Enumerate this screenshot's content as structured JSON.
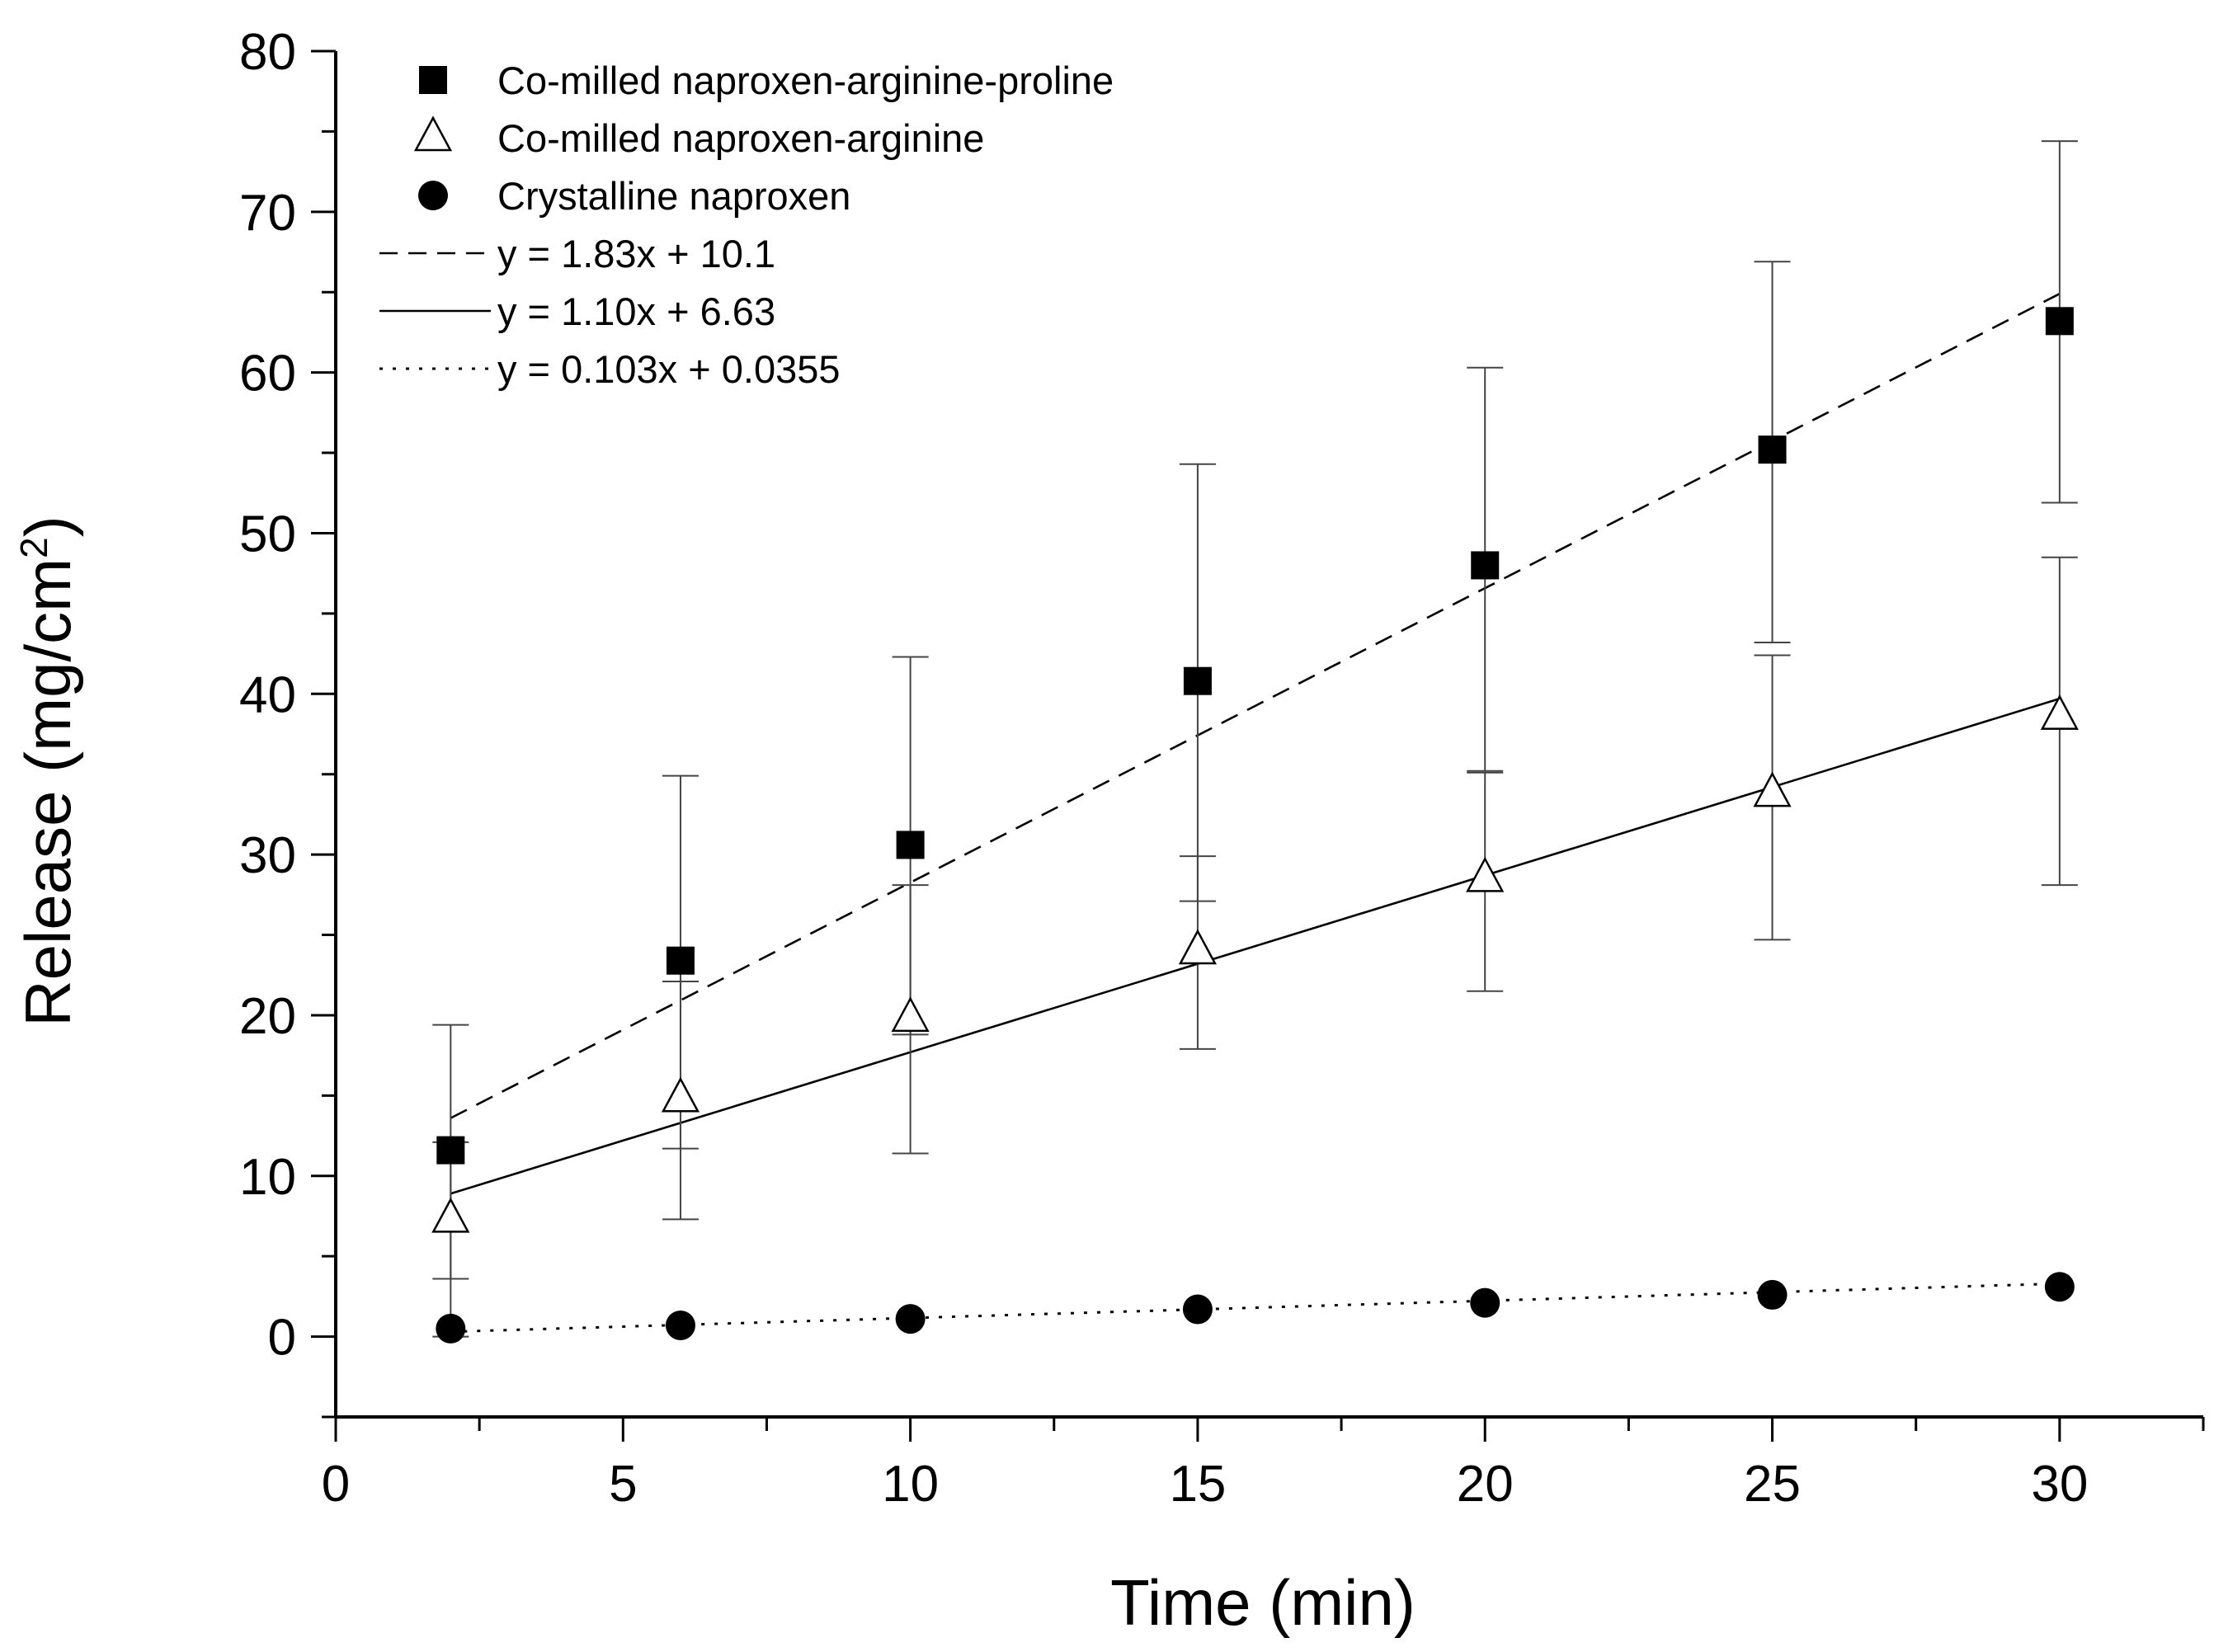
{
  "chart_data": {
    "type": "scatter",
    "title": "",
    "xlabel": "Time (min)",
    "ylabel": "Release (mg/cm",
    "ylabel_sup": "2",
    "ylabel_close": ")",
    "xlim": [
      0,
      32.5
    ],
    "ylim": [
      -5,
      80
    ],
    "xticks": [
      0,
      5,
      10,
      15,
      20,
      25,
      30
    ],
    "yticks": [
      0,
      10,
      20,
      30,
      40,
      50,
      60,
      70,
      80
    ],
    "grid": false,
    "legend_position": "top-left",
    "series": [
      {
        "name": "Co-milled naproxen-arginine-proline",
        "marker": "filled-square",
        "x": [
          2,
          6,
          10,
          15,
          20,
          25,
          30
        ],
        "y": [
          11.6,
          23.4,
          30.6,
          40.8,
          48.0,
          55.2,
          63.2
        ],
        "err_low": [
          3.6,
          11.7,
          18.8,
          27.1,
          35.2,
          43.2,
          51.9
        ],
        "err_high": [
          19.4,
          34.9,
          42.3,
          54.3,
          60.3,
          66.9,
          74.4
        ]
      },
      {
        "name": "Co-milled naproxen-arginine",
        "marker": "open-triangle",
        "x": [
          2,
          6,
          10,
          15,
          20,
          25,
          30
        ],
        "y": [
          7.3,
          14.8,
          19.8,
          24.0,
          28.5,
          33.8,
          38.6
        ],
        "err_low": [
          0,
          7.3,
          11.4,
          17.9,
          21.5,
          24.7,
          28.1
        ],
        "err_high": [
          12.1,
          22.1,
          28.1,
          29.9,
          35.1,
          42.4,
          48.5
        ]
      },
      {
        "name": "Crystalline naproxen",
        "marker": "filled-circle",
        "x": [
          2,
          6,
          10,
          15,
          20,
          25,
          30
        ],
        "y": [
          0.5,
          0.7,
          1.1,
          1.7,
          2.1,
          2.6,
          3.1
        ]
      }
    ],
    "fits": [
      {
        "label": "y = 1.83x + 10.1",
        "style": "dashed",
        "x_range": [
          2,
          30
        ],
        "y_start": 13.6,
        "y_end": 64.9
      },
      {
        "label": "y = 1.10x + 6.63",
        "style": "solid",
        "x_range": [
          2,
          30
        ],
        "y_start": 8.9,
        "y_end": 39.7
      },
      {
        "label": "y = 0.103x + 0.0355",
        "style": "dotted",
        "x_range": [
          2,
          30
        ],
        "y_start": 0.3,
        "y_end": 3.3
      }
    ]
  }
}
